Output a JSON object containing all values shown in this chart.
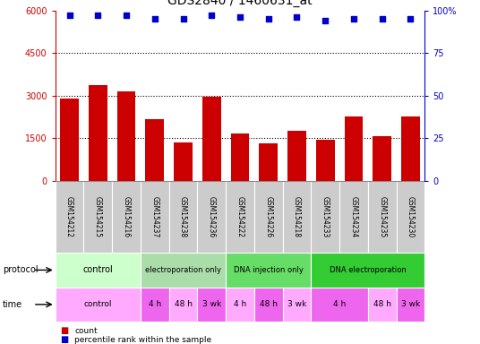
{
  "title": "GDS2840 / 1460631_at",
  "samples": [
    "GSM154212",
    "GSM154215",
    "GSM154216",
    "GSM154237",
    "GSM154238",
    "GSM154236",
    "GSM154222",
    "GSM154226",
    "GSM154218",
    "GSM154233",
    "GSM154234",
    "GSM154235",
    "GSM154230"
  ],
  "counts": [
    2900,
    3350,
    3150,
    2150,
    1350,
    2950,
    1650,
    1300,
    1750,
    1450,
    2250,
    1550,
    2250
  ],
  "percentile_ranks": [
    97,
    97,
    97,
    95,
    95,
    97,
    96,
    95,
    96,
    94,
    95,
    95,
    95
  ],
  "bar_color": "#cc0000",
  "dot_color": "#0000cc",
  "ylim_left": [
    0,
    6000
  ],
  "ylim_right": [
    0,
    100
  ],
  "yticks_left": [
    0,
    1500,
    3000,
    4500,
    6000
  ],
  "yticks_right": [
    0,
    25,
    50,
    75,
    100
  ],
  "protocol_defs": [
    {
      "label": "control",
      "start": 0,
      "end": 3,
      "color": "#ccffcc"
    },
    {
      "label": "electroporation only",
      "start": 3,
      "end": 6,
      "color": "#aaddaa"
    },
    {
      "label": "DNA injection only",
      "start": 6,
      "end": 9,
      "color": "#66dd66"
    },
    {
      "label": "DNA electroporation",
      "start": 9,
      "end": 13,
      "color": "#33cc33"
    }
  ],
  "time_defs": [
    {
      "label": "control",
      "start": 0,
      "end": 3,
      "color": "#ffaaff"
    },
    {
      "label": "4 h",
      "start": 3,
      "end": 4,
      "color": "#ee66ee"
    },
    {
      "label": "48 h",
      "start": 4,
      "end": 5,
      "color": "#ffaaff"
    },
    {
      "label": "3 wk",
      "start": 5,
      "end": 6,
      "color": "#ee66ee"
    },
    {
      "label": "4 h",
      "start": 6,
      "end": 7,
      "color": "#ffaaff"
    },
    {
      "label": "48 h",
      "start": 7,
      "end": 8,
      "color": "#ee66ee"
    },
    {
      "label": "3 wk",
      "start": 8,
      "end": 9,
      "color": "#ffaaff"
    },
    {
      "label": "4 h",
      "start": 9,
      "end": 11,
      "color": "#ee66ee"
    },
    {
      "label": "48 h",
      "start": 11,
      "end": 12,
      "color": "#ffaaff"
    },
    {
      "label": "3 wk",
      "start": 12,
      "end": 13,
      "color": "#ee66ee"
    }
  ],
  "legend_count_color": "#cc0000",
  "legend_dot_color": "#0000cc",
  "left_axis_color": "#cc0000",
  "right_axis_color": "#0000cc",
  "sample_label_bg": "#cccccc",
  "background_color": "#ffffff"
}
